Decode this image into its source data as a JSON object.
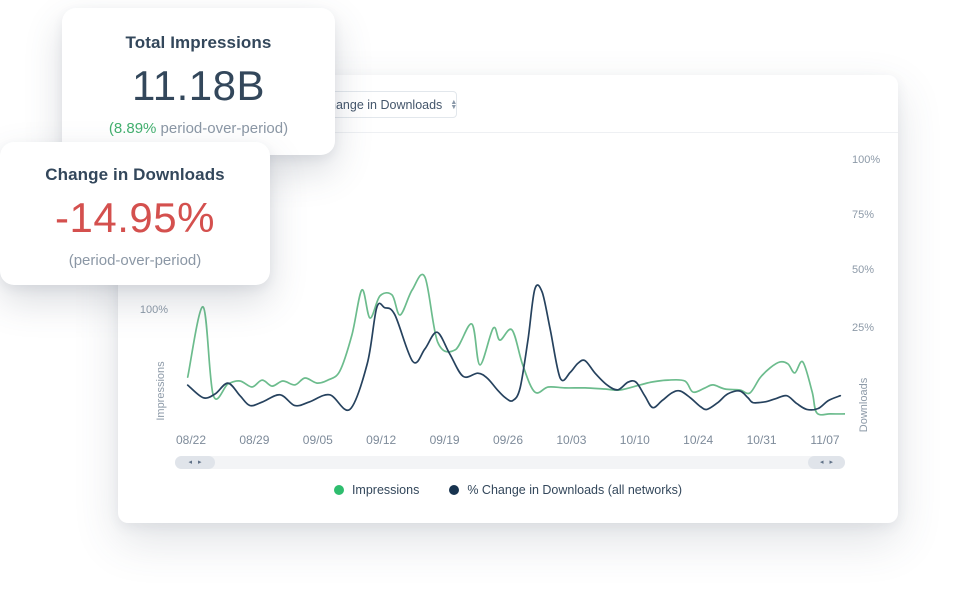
{
  "cards": {
    "impressions": {
      "title": "Total Impressions",
      "value": "11.18B",
      "delta_green": "(8.89%",
      "delta_rest": " period-over-period)"
    },
    "downloads": {
      "title": "Change in Downloads",
      "value": "-14.95%",
      "sub": "(period-over-period)"
    }
  },
  "panel": {
    "metric_select": {
      "value": "Change in Downloads",
      "icon": "up-down-chevron"
    }
  },
  "scrollbar": {
    "arrows": [
      "◂",
      "▸"
    ]
  },
  "colors": {
    "heading_navy": "#33475b",
    "muted_gray": "#8b97a5",
    "accent_green": "#43b06f",
    "negative_red": "#d4504e",
    "line_green": "#6cbc8d",
    "line_navy": "#26425e",
    "legend_green_dot": "#2ebd6e",
    "legend_navy_dot": "#17334f"
  },
  "chart_data": {
    "type": "line",
    "x_ticks": [
      "08/22",
      "08/29",
      "09/05",
      "09/12",
      "09/19",
      "09/26",
      "10/03",
      "10/10",
      "10/24",
      "10/31",
      "11/07"
    ],
    "left_axis": {
      "title": "Impressions",
      "tick_labels": [
        "100%"
      ],
      "unit": "%"
    },
    "right_axis": {
      "title": "Downloads",
      "tick_labels": [
        "100%",
        "75%",
        "50%",
        "25%"
      ],
      "unit": "%"
    },
    "grid": "off",
    "legend_position": "bottom-center",
    "series": [
      {
        "name": "Impressions",
        "axis": "left",
        "color": "#6cbc8d",
        "points": [
          [
            0.019,
            71.7
          ],
          [
            0.042,
            102.2
          ],
          [
            0.057,
            63.9
          ],
          [
            0.079,
            68.7
          ],
          [
            0.097,
            70.0
          ],
          [
            0.115,
            67.4
          ],
          [
            0.13,
            70.4
          ],
          [
            0.145,
            67.8
          ],
          [
            0.161,
            70.0
          ],
          [
            0.179,
            68.3
          ],
          [
            0.194,
            71.3
          ],
          [
            0.212,
            69.1
          ],
          [
            0.228,
            70.4
          ],
          [
            0.246,
            74.3
          ],
          [
            0.264,
            90.0
          ],
          [
            0.279,
            109.6
          ],
          [
            0.291,
            97.4
          ],
          [
            0.306,
            107.0
          ],
          [
            0.324,
            107.4
          ],
          [
            0.336,
            98.7
          ],
          [
            0.354,
            109.6
          ],
          [
            0.373,
            115.2
          ],
          [
            0.392,
            87.0
          ],
          [
            0.418,
            83.5
          ],
          [
            0.443,
            94.8
          ],
          [
            0.455,
            77.0
          ],
          [
            0.475,
            93.0
          ],
          [
            0.485,
            87.8
          ],
          [
            0.503,
            92.2
          ],
          [
            0.519,
            77.0
          ],
          [
            0.537,
            65.2
          ],
          [
            0.557,
            67.4
          ],
          [
            0.582,
            67.0
          ],
          [
            0.612,
            67.0
          ],
          [
            0.642,
            66.5
          ],
          [
            0.664,
            66.1
          ],
          [
            0.694,
            68.3
          ],
          [
            0.713,
            69.6
          ],
          [
            0.736,
            70.4
          ],
          [
            0.761,
            70.0
          ],
          [
            0.773,
            65.2
          ],
          [
            0.791,
            67.0
          ],
          [
            0.803,
            68.3
          ],
          [
            0.821,
            66.5
          ],
          [
            0.843,
            66.1
          ],
          [
            0.858,
            64.8
          ],
          [
            0.873,
            71.3
          ],
          [
            0.888,
            75.7
          ],
          [
            0.903,
            78.3
          ],
          [
            0.915,
            77.4
          ],
          [
            0.925,
            73.5
          ],
          [
            0.937,
            78.3
          ],
          [
            0.951,
            65.2
          ],
          [
            0.958,
            56.1
          ],
          [
            0.978,
            55.7
          ],
          [
            1.0,
            55.7
          ]
        ]
      },
      {
        "name": "% Change in Downloads (all networks)",
        "axis": "right",
        "color": "#26425e",
        "points": [
          [
            0.019,
            0.4
          ],
          [
            0.042,
            -5.2
          ],
          [
            0.06,
            -3.5
          ],
          [
            0.079,
            1.3
          ],
          [
            0.097,
            -4.3
          ],
          [
            0.112,
            -8.7
          ],
          [
            0.131,
            -7.0
          ],
          [
            0.157,
            -3.9
          ],
          [
            0.179,
            -8.7
          ],
          [
            0.201,
            -7.0
          ],
          [
            0.231,
            -3.9
          ],
          [
            0.261,
            -10.4
          ],
          [
            0.287,
            10.0
          ],
          [
            0.301,
            34.8
          ],
          [
            0.313,
            34.8
          ],
          [
            0.328,
            31.7
          ],
          [
            0.355,
            10.9
          ],
          [
            0.373,
            16.5
          ],
          [
            0.391,
            23.9
          ],
          [
            0.41,
            14.3
          ],
          [
            0.43,
            4.3
          ],
          [
            0.452,
            5.7
          ],
          [
            0.466,
            3.5
          ],
          [
            0.481,
            -1.7
          ],
          [
            0.493,
            -5.2
          ],
          [
            0.504,
            -6.5
          ],
          [
            0.515,
            -0.9
          ],
          [
            0.527,
            20.9
          ],
          [
            0.537,
            43.0
          ],
          [
            0.548,
            41.7
          ],
          [
            0.56,
            25.2
          ],
          [
            0.575,
            3.5
          ],
          [
            0.59,
            6.1
          ],
          [
            0.601,
            10.0
          ],
          [
            0.612,
            11.3
          ],
          [
            0.627,
            5.7
          ],
          [
            0.645,
            0.4
          ],
          [
            0.661,
            -1.7
          ],
          [
            0.676,
            1.7
          ],
          [
            0.688,
            1.7
          ],
          [
            0.701,
            -4.3
          ],
          [
            0.713,
            -9.6
          ],
          [
            0.727,
            -6.5
          ],
          [
            0.742,
            -3.0
          ],
          [
            0.754,
            -2.2
          ],
          [
            0.769,
            -5.2
          ],
          [
            0.784,
            -9.1
          ],
          [
            0.794,
            -10.4
          ],
          [
            0.81,
            -7.4
          ],
          [
            0.825,
            -3.5
          ],
          [
            0.843,
            -2.2
          ],
          [
            0.855,
            -5.2
          ],
          [
            0.863,
            -7.4
          ],
          [
            0.881,
            -7.0
          ],
          [
            0.896,
            -5.7
          ],
          [
            0.913,
            -4.3
          ],
          [
            0.928,
            -7.8
          ],
          [
            0.943,
            -10.4
          ],
          [
            0.96,
            -10.0
          ],
          [
            0.975,
            -6.5
          ],
          [
            0.993,
            -4.3
          ]
        ]
      }
    ],
    "legend": [
      {
        "label": "Impressions",
        "color": "#2ebd6e"
      },
      {
        "label": "% Change in Downloads (all networks)",
        "color": "#17334f"
      }
    ]
  }
}
